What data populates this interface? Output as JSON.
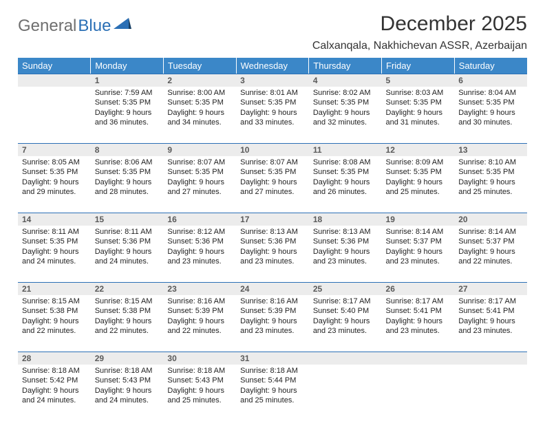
{
  "logo": {
    "general": "General",
    "blue": "Blue"
  },
  "title": "December 2025",
  "location": "Calxanqala, Nakhichevan ASSR, Azerbaijan",
  "theme": {
    "header_bg": "#3b87c8",
    "header_fg": "#ffffff",
    "daynum_bg": "#ececec",
    "daynum_fg": "#5a5a5a",
    "rule_color": "#2a6fb5",
    "logo_gray": "#6f6f6f",
    "logo_blue": "#2a6fb5",
    "text_color": "#222222"
  },
  "day_headers": [
    "Sunday",
    "Monday",
    "Tuesday",
    "Wednesday",
    "Thursday",
    "Friday",
    "Saturday"
  ],
  "weeks": [
    [
      null,
      {
        "n": "1",
        "sr": "7:59 AM",
        "ss": "5:35 PM",
        "dl": "9 hours and 36 minutes."
      },
      {
        "n": "2",
        "sr": "8:00 AM",
        "ss": "5:35 PM",
        "dl": "9 hours and 34 minutes."
      },
      {
        "n": "3",
        "sr": "8:01 AM",
        "ss": "5:35 PM",
        "dl": "9 hours and 33 minutes."
      },
      {
        "n": "4",
        "sr": "8:02 AM",
        "ss": "5:35 PM",
        "dl": "9 hours and 32 minutes."
      },
      {
        "n": "5",
        "sr": "8:03 AM",
        "ss": "5:35 PM",
        "dl": "9 hours and 31 minutes."
      },
      {
        "n": "6",
        "sr": "8:04 AM",
        "ss": "5:35 PM",
        "dl": "9 hours and 30 minutes."
      }
    ],
    [
      {
        "n": "7",
        "sr": "8:05 AM",
        "ss": "5:35 PM",
        "dl": "9 hours and 29 minutes."
      },
      {
        "n": "8",
        "sr": "8:06 AM",
        "ss": "5:35 PM",
        "dl": "9 hours and 28 minutes."
      },
      {
        "n": "9",
        "sr": "8:07 AM",
        "ss": "5:35 PM",
        "dl": "9 hours and 27 minutes."
      },
      {
        "n": "10",
        "sr": "8:07 AM",
        "ss": "5:35 PM",
        "dl": "9 hours and 27 minutes."
      },
      {
        "n": "11",
        "sr": "8:08 AM",
        "ss": "5:35 PM",
        "dl": "9 hours and 26 minutes."
      },
      {
        "n": "12",
        "sr": "8:09 AM",
        "ss": "5:35 PM",
        "dl": "9 hours and 25 minutes."
      },
      {
        "n": "13",
        "sr": "8:10 AM",
        "ss": "5:35 PM",
        "dl": "9 hours and 25 minutes."
      }
    ],
    [
      {
        "n": "14",
        "sr": "8:11 AM",
        "ss": "5:35 PM",
        "dl": "9 hours and 24 minutes."
      },
      {
        "n": "15",
        "sr": "8:11 AM",
        "ss": "5:36 PM",
        "dl": "9 hours and 24 minutes."
      },
      {
        "n": "16",
        "sr": "8:12 AM",
        "ss": "5:36 PM",
        "dl": "9 hours and 23 minutes."
      },
      {
        "n": "17",
        "sr": "8:13 AM",
        "ss": "5:36 PM",
        "dl": "9 hours and 23 minutes."
      },
      {
        "n": "18",
        "sr": "8:13 AM",
        "ss": "5:36 PM",
        "dl": "9 hours and 23 minutes."
      },
      {
        "n": "19",
        "sr": "8:14 AM",
        "ss": "5:37 PM",
        "dl": "9 hours and 23 minutes."
      },
      {
        "n": "20",
        "sr": "8:14 AM",
        "ss": "5:37 PM",
        "dl": "9 hours and 22 minutes."
      }
    ],
    [
      {
        "n": "21",
        "sr": "8:15 AM",
        "ss": "5:38 PM",
        "dl": "9 hours and 22 minutes."
      },
      {
        "n": "22",
        "sr": "8:15 AM",
        "ss": "5:38 PM",
        "dl": "9 hours and 22 minutes."
      },
      {
        "n": "23",
        "sr": "8:16 AM",
        "ss": "5:39 PM",
        "dl": "9 hours and 22 minutes."
      },
      {
        "n": "24",
        "sr": "8:16 AM",
        "ss": "5:39 PM",
        "dl": "9 hours and 23 minutes."
      },
      {
        "n": "25",
        "sr": "8:17 AM",
        "ss": "5:40 PM",
        "dl": "9 hours and 23 minutes."
      },
      {
        "n": "26",
        "sr": "8:17 AM",
        "ss": "5:41 PM",
        "dl": "9 hours and 23 minutes."
      },
      {
        "n": "27",
        "sr": "8:17 AM",
        "ss": "5:41 PM",
        "dl": "9 hours and 23 minutes."
      }
    ],
    [
      {
        "n": "28",
        "sr": "8:18 AM",
        "ss": "5:42 PM",
        "dl": "9 hours and 24 minutes."
      },
      {
        "n": "29",
        "sr": "8:18 AM",
        "ss": "5:43 PM",
        "dl": "9 hours and 24 minutes."
      },
      {
        "n": "30",
        "sr": "8:18 AM",
        "ss": "5:43 PM",
        "dl": "9 hours and 25 minutes."
      },
      {
        "n": "31",
        "sr": "8:18 AM",
        "ss": "5:44 PM",
        "dl": "9 hours and 25 minutes."
      },
      null,
      null,
      null
    ]
  ],
  "labels": {
    "sunrise": "Sunrise:",
    "sunset": "Sunset:",
    "daylight": "Daylight:"
  }
}
